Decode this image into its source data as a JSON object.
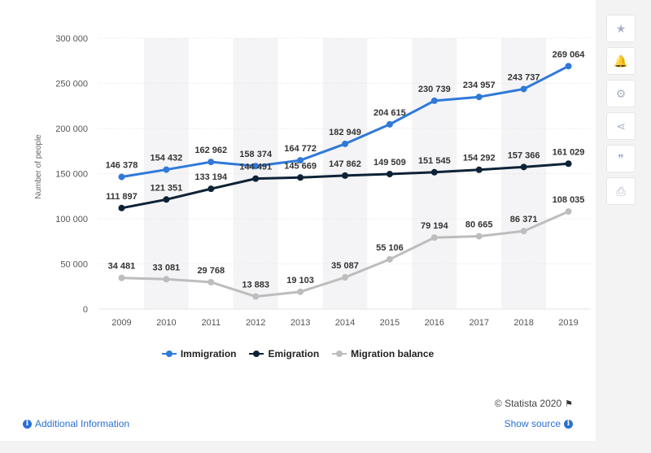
{
  "sidebar": {
    "buttons": [
      {
        "icon": "star-icon",
        "glyph": "★"
      },
      {
        "icon": "bell-icon",
        "glyph": "🔔"
      },
      {
        "icon": "gear-icon",
        "glyph": "⚙"
      },
      {
        "icon": "share-icon",
        "glyph": "⋖"
      },
      {
        "icon": "quote-icon",
        "glyph": "❞"
      },
      {
        "icon": "print-icon",
        "glyph": "⎙"
      }
    ]
  },
  "footer": {
    "credit": "© Statista 2020",
    "additional_info": "Additional Information",
    "show_source": "Show source"
  },
  "chart_data": {
    "type": "line",
    "title": "",
    "xlabel": "",
    "ylabel": "Number of people",
    "categories": [
      "2009",
      "2010",
      "2011",
      "2012",
      "2013",
      "2014",
      "2015",
      "2016",
      "2017",
      "2018",
      "2019"
    ],
    "ylim": [
      0,
      300000
    ],
    "yticks": [
      0,
      50000,
      100000,
      150000,
      200000,
      250000,
      300000
    ],
    "ytick_labels": [
      "0",
      "50 000",
      "100 000",
      "150 000",
      "200 000",
      "250 000",
      "300 000"
    ],
    "legend_position": "bottom",
    "series": [
      {
        "name": "Immigration",
        "color": "#2f79d8",
        "values": [
          146378,
          154432,
          162962,
          158374,
          164772,
          182949,
          204615,
          230739,
          234957,
          243737,
          269064
        ],
        "labels": [
          "146 378",
          "154 432",
          "162 962",
          "158 374",
          "164 772",
          "182 949",
          "204 615",
          "230 739",
          "234 957",
          "243 737",
          "269 064"
        ]
      },
      {
        "name": "Emigration",
        "color": "#0d2236",
        "values": [
          111897,
          121351,
          133194,
          144491,
          145669,
          147862,
          149509,
          151545,
          154292,
          157366,
          161029
        ],
        "labels": [
          "111 897",
          "121 351",
          "133 194",
          "144 491",
          "145 669",
          "147 862",
          "149 509",
          "151 545",
          "154 292",
          "157 366",
          "161 029"
        ]
      },
      {
        "name": "Migration balance",
        "color": "#bdbdbd",
        "values": [
          34481,
          33081,
          29768,
          13883,
          19103,
          35087,
          55106,
          79194,
          80665,
          86371,
          108035
        ],
        "labels": [
          "34 481",
          "33 081",
          "29 768",
          "13 883",
          "19 103",
          "35 087",
          "55 106",
          "79 194",
          "80 665",
          "86 371",
          "108 035"
        ]
      }
    ]
  }
}
